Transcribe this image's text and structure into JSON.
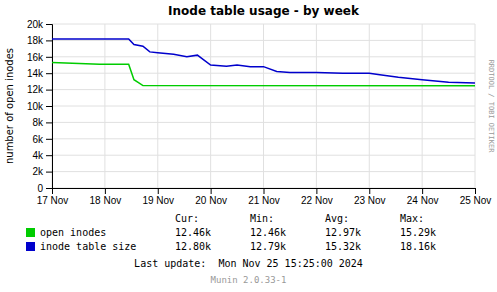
{
  "chart_data": {
    "type": "line",
    "title": "Inode table usage - by week",
    "y_label": "number of open inodes",
    "xlim": [
      0,
      8
    ],
    "xticks": [
      {
        "value": 0,
        "label": "17 Nov"
      },
      {
        "value": 1,
        "label": "18 Nov"
      },
      {
        "value": 2,
        "label": "19 Nov"
      },
      {
        "value": 3,
        "label": "20 Nov"
      },
      {
        "value": 4,
        "label": "21 Nov"
      },
      {
        "value": 5,
        "label": "22 Nov"
      },
      {
        "value": 6,
        "label": "23 Nov"
      },
      {
        "value": 7,
        "label": "24 Nov"
      },
      {
        "value": 8,
        "label": "25 Nov"
      }
    ],
    "ylim": [
      0,
      20000
    ],
    "yticks": [
      0,
      {
        "value": 2000,
        "label": "2k"
      },
      {
        "value": 4000,
        "label": "4k"
      },
      {
        "value": 6000,
        "label": "6k"
      },
      {
        "value": 8000,
        "label": "8k"
      },
      {
        "value": 10000,
        "label": "10k"
      },
      {
        "value": 12000,
        "label": "12k"
      },
      {
        "value": 14000,
        "label": "14k"
      },
      {
        "value": 16000,
        "label": "16k"
      },
      {
        "value": 18000,
        "label": "18k"
      },
      {
        "value": 20000,
        "label": "20k"
      }
    ],
    "grid": true,
    "stat_columns": [
      "Cur:",
      "Min:",
      "Avg:",
      "Max:"
    ],
    "series": [
      {
        "name": "open inodes",
        "color": "#00cc00",
        "x": [
          0.0,
          0.9,
          1.45,
          1.55,
          1.65,
          1.72,
          8.0
        ],
        "values": [
          15300,
          15100,
          15100,
          13200,
          12800,
          12500,
          12460
        ],
        "stat_values": [
          "12.46k",
          "12.46k",
          "12.97k",
          "15.29k"
        ]
      },
      {
        "name": "inode table size",
        "color": "#0000cc",
        "x": [
          0.0,
          1.45,
          1.55,
          1.72,
          1.85,
          2.0,
          2.3,
          2.55,
          2.75,
          3.0,
          3.3,
          3.5,
          3.75,
          4.0,
          4.25,
          4.5,
          5.0,
          5.5,
          6.0,
          6.2,
          6.55,
          7.0,
          7.5,
          8.0
        ],
        "values": [
          18160,
          18160,
          17500,
          17300,
          16600,
          16500,
          16300,
          16000,
          16200,
          15000,
          14850,
          15000,
          14800,
          14800,
          14200,
          14100,
          14100,
          14000,
          14000,
          13800,
          13500,
          13200,
          12900,
          12800
        ],
        "stat_values": [
          "12.80k",
          "12.79k",
          "15.32k",
          "18.16k"
        ]
      }
    ],
    "annotations": [
      "Last update:  Mon Nov 25 15:25:00 2024",
      "RRDTOOL / TOBI OETIKER",
      "Munin 2.0.33-1"
    ]
  }
}
